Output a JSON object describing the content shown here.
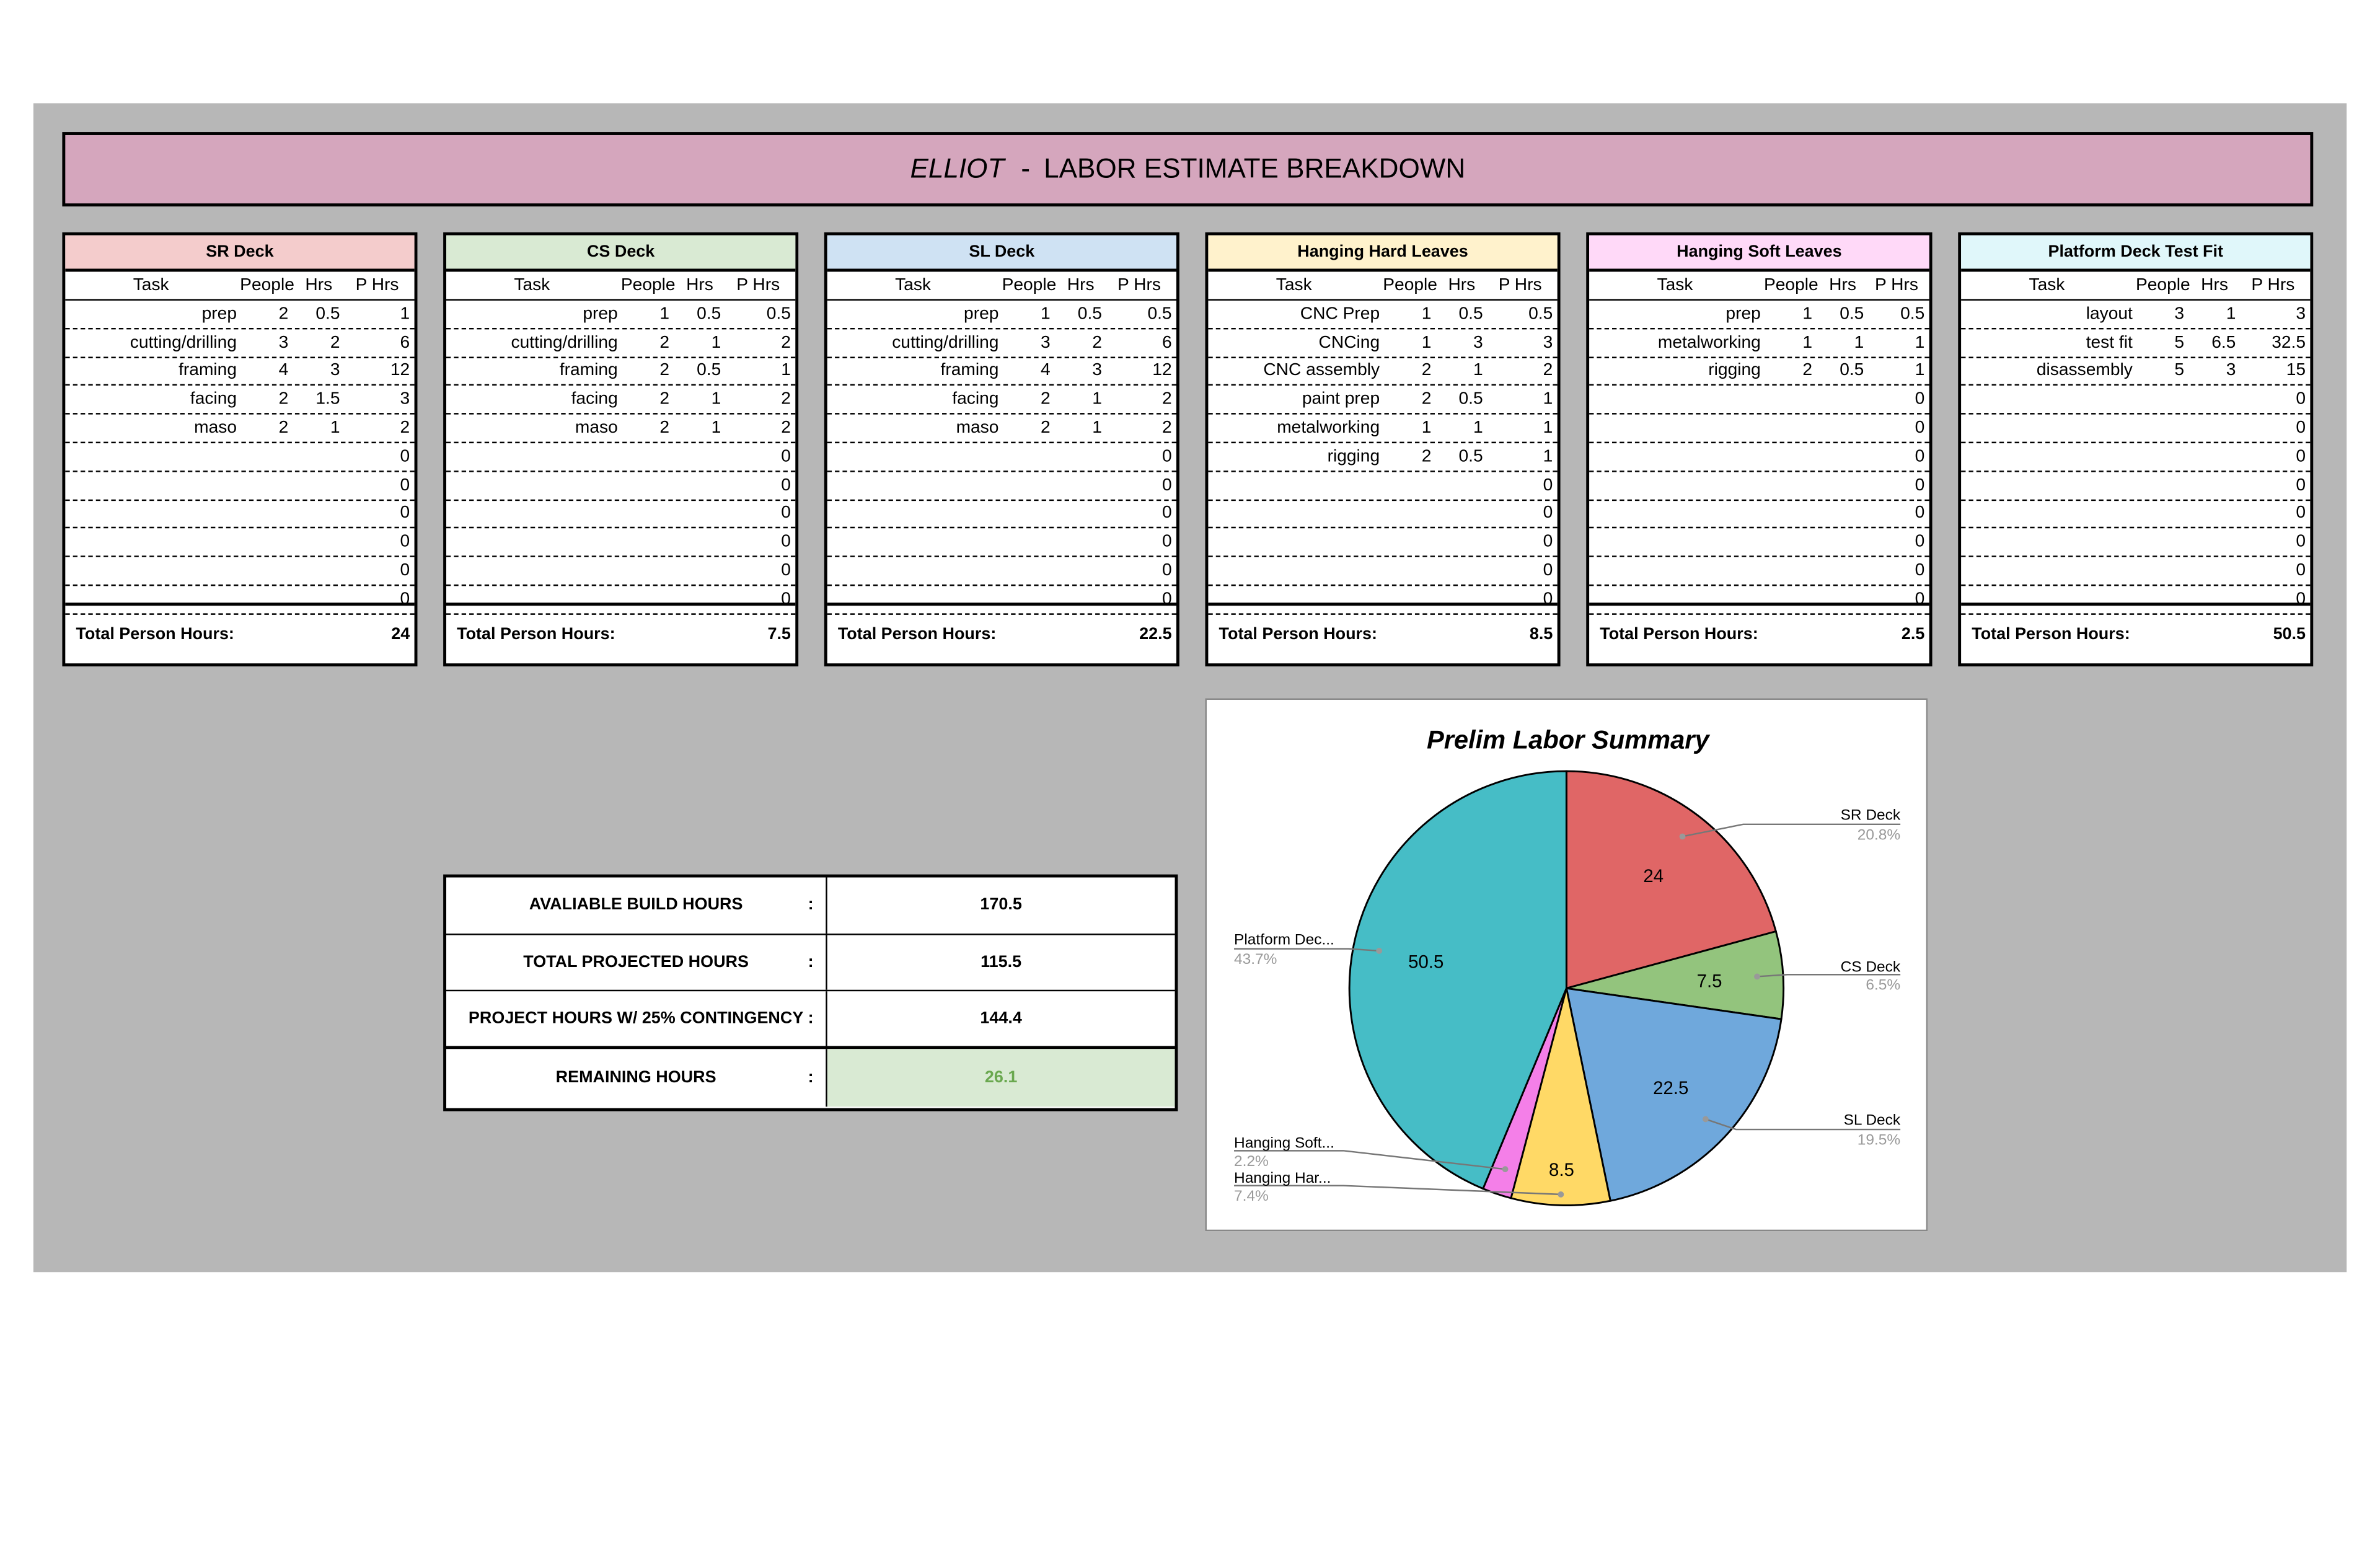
{
  "title": {
    "name": "ELLIOT",
    "separator": " - ",
    "subtitle": "LABOR ESTIMATE BREAKDOWN",
    "color": "#d5a6bd"
  },
  "columns": [
    "Task",
    "People",
    "Hrs",
    "P Hrs"
  ],
  "total_label": "Total Person Hours:",
  "tables": [
    {
      "name": "SR Deck",
      "color": "#f4cccc",
      "rows": [
        [
          "prep",
          "2",
          "0.5",
          "1"
        ],
        [
          "cutting/drilling",
          "3",
          "2",
          "6"
        ],
        [
          "framing",
          "4",
          "3",
          "12"
        ],
        [
          "facing",
          "2",
          "1.5",
          "3"
        ],
        [
          "maso",
          "2",
          "1",
          "2"
        ],
        [
          "",
          "",
          "",
          "0"
        ],
        [
          "",
          "",
          "",
          "0"
        ],
        [
          "",
          "",
          "",
          "0"
        ],
        [
          "",
          "",
          "",
          "0"
        ],
        [
          "",
          "",
          "",
          "0"
        ],
        [
          "",
          "",
          "",
          "0"
        ]
      ],
      "total": "24"
    },
    {
      "name": "CS Deck",
      "color": "#d9ead3",
      "rows": [
        [
          "prep",
          "1",
          "0.5",
          "0.5"
        ],
        [
          "cutting/drilling",
          "2",
          "1",
          "2"
        ],
        [
          "framing",
          "2",
          "0.5",
          "1"
        ],
        [
          "facing",
          "2",
          "1",
          "2"
        ],
        [
          "maso",
          "2",
          "1",
          "2"
        ],
        [
          "",
          "",
          "",
          "0"
        ],
        [
          "",
          "",
          "",
          "0"
        ],
        [
          "",
          "",
          "",
          "0"
        ],
        [
          "",
          "",
          "",
          "0"
        ],
        [
          "",
          "",
          "",
          "0"
        ],
        [
          "",
          "",
          "",
          "0"
        ]
      ],
      "total": "7.5"
    },
    {
      "name": "SL Deck",
      "color": "#cfe2f3",
      "rows": [
        [
          "prep",
          "1",
          "0.5",
          "0.5"
        ],
        [
          "cutting/drilling",
          "3",
          "2",
          "6"
        ],
        [
          "framing",
          "4",
          "3",
          "12"
        ],
        [
          "facing",
          "2",
          "1",
          "2"
        ],
        [
          "maso",
          "2",
          "1",
          "2"
        ],
        [
          "",
          "",
          "",
          "0"
        ],
        [
          "",
          "",
          "",
          "0"
        ],
        [
          "",
          "",
          "",
          "0"
        ],
        [
          "",
          "",
          "",
          "0"
        ],
        [
          "",
          "",
          "",
          "0"
        ],
        [
          "",
          "",
          "",
          "0"
        ]
      ],
      "total": "22.5"
    },
    {
      "name": "Hanging Hard Leaves",
      "color": "#fff2cc",
      "rows": [
        [
          "CNC Prep",
          "1",
          "0.5",
          "0.5"
        ],
        [
          "CNCing",
          "1",
          "3",
          "3"
        ],
        [
          "CNC assembly",
          "2",
          "1",
          "2"
        ],
        [
          "paint prep",
          "2",
          "0.5",
          "1"
        ],
        [
          "metalworking",
          "1",
          "1",
          "1"
        ],
        [
          "rigging",
          "2",
          "0.5",
          "1"
        ],
        [
          "",
          "",
          "",
          "0"
        ],
        [
          "",
          "",
          "",
          "0"
        ],
        [
          "",
          "",
          "",
          "0"
        ],
        [
          "",
          "",
          "",
          "0"
        ],
        [
          "",
          "",
          "",
          "0"
        ]
      ],
      "total": "8.5"
    },
    {
      "name": "Hanging Soft Leaves",
      "color": "#ffd9f8",
      "rows": [
        [
          "prep",
          "1",
          "0.5",
          "0.5"
        ],
        [
          "metalworking",
          "1",
          "1",
          "1"
        ],
        [
          "rigging",
          "2",
          "0.5",
          "1"
        ],
        [
          "",
          "",
          "",
          "0"
        ],
        [
          "",
          "",
          "",
          "0"
        ],
        [
          "",
          "",
          "",
          "0"
        ],
        [
          "",
          "",
          "",
          "0"
        ],
        [
          "",
          "",
          "",
          "0"
        ],
        [
          "",
          "",
          "",
          "0"
        ],
        [
          "",
          "",
          "",
          "0"
        ],
        [
          "",
          "",
          "",
          "0"
        ]
      ],
      "total": "2.5"
    },
    {
      "name": "Platform Deck Test Fit",
      "color": "#e0f7fa",
      "rows": [
        [
          "layout",
          "3",
          "1",
          "3"
        ],
        [
          "test fit",
          "5",
          "6.5",
          "32.5"
        ],
        [
          "disassembly",
          "5",
          "3",
          "15"
        ],
        [
          "",
          "",
          "",
          "0"
        ],
        [
          "",
          "",
          "",
          "0"
        ],
        [
          "",
          "",
          "",
          "0"
        ],
        [
          "",
          "",
          "",
          "0"
        ],
        [
          "",
          "",
          "",
          "0"
        ],
        [
          "",
          "",
          "",
          "0"
        ],
        [
          "",
          "",
          "",
          "0"
        ],
        [
          "",
          "",
          "",
          "0"
        ]
      ],
      "total": "50.5"
    }
  ],
  "summary": [
    {
      "label": "AVALIABLE BUILD HOURS",
      "sep": ":",
      "value": "170.5"
    },
    {
      "label": "TOTAL PROJECTED HOURS",
      "sep": ":",
      "value": "115.5"
    },
    {
      "label": "PROJECT HOURS W/ 25% CONTINGENCY",
      "sep": ":",
      "value": "144.4"
    },
    {
      "label": "REMAINING HOURS",
      "sep": ":",
      "value": "26.1",
      "bg": "#d9ead3",
      "color": "#6aa84f"
    }
  ],
  "chart_data": {
    "type": "pie",
    "title": "Prelim Labor Summary",
    "categories": [
      "SR Deck",
      "CS Deck",
      "SL Deck",
      "Hanging Hard Leaves",
      "Hanging Soft Leaves",
      "Platform Deck Test Fit"
    ],
    "legend_labels": [
      "SR Deck",
      "CS Deck",
      "SL Deck",
      "Hanging Har...",
      "Hanging Soft...",
      "Platform Dec..."
    ],
    "values": [
      24,
      7.5,
      22.5,
      8.5,
      2.5,
      50.5
    ],
    "value_labels": [
      "24",
      "7.5",
      "22.5",
      "8.5",
      "",
      "50.5"
    ],
    "percent_labels": [
      "20.8%",
      "6.5%",
      "19.5%",
      "7.4%",
      "2.2%",
      "43.7%"
    ],
    "colors": [
      "#e06666",
      "#93c47d",
      "#6fa8dc",
      "#ffd966",
      "#f47fe8",
      "#46bdc6"
    ]
  }
}
